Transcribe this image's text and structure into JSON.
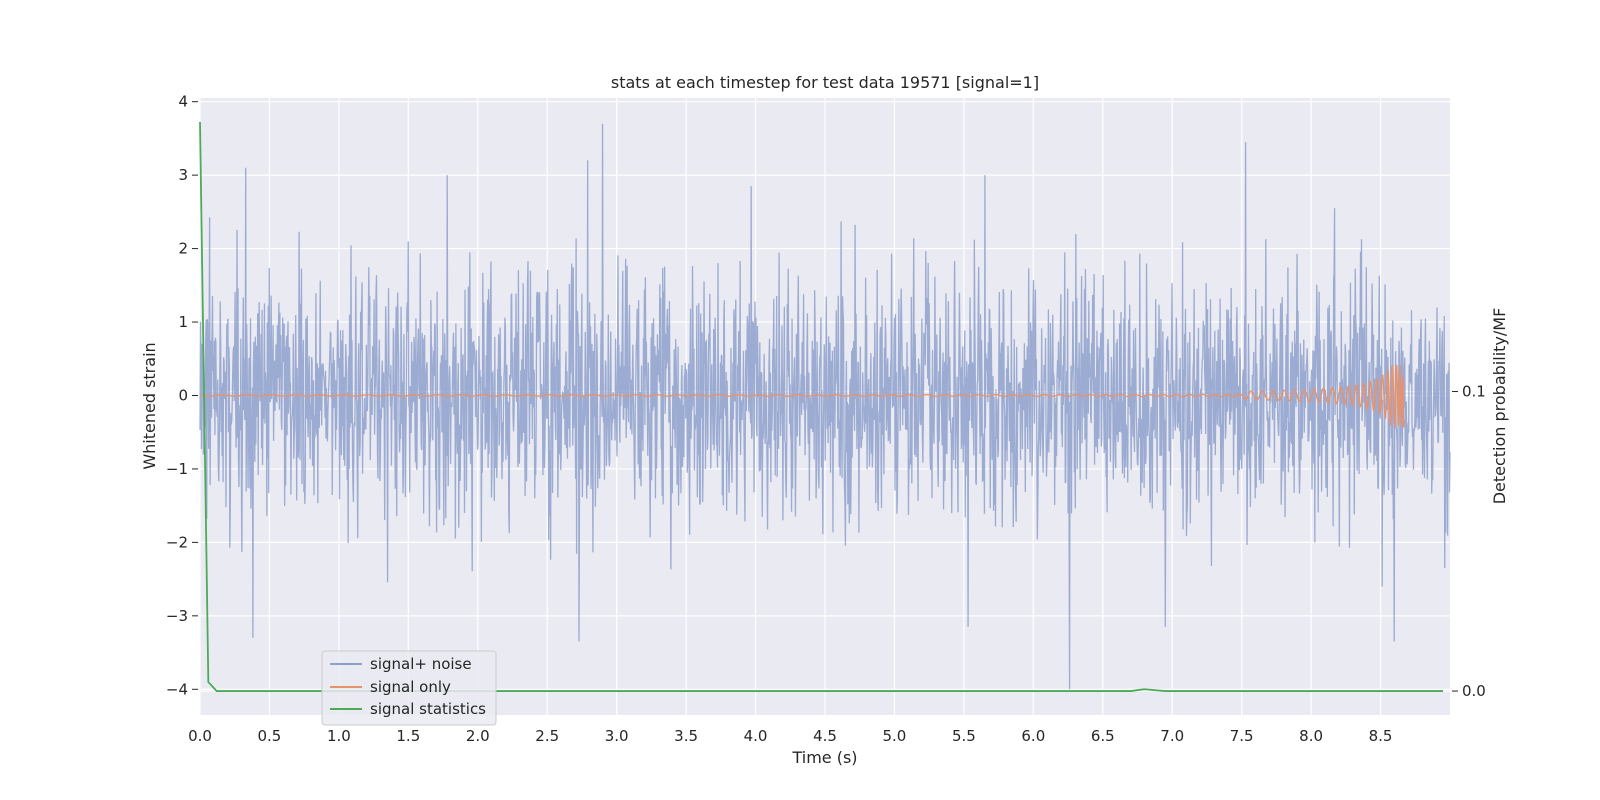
{
  "chart_data": {
    "type": "line",
    "title": "stats at each timestep for test data 19571 [signal=1]",
    "xlabel": "Time (s)",
    "ylabel": "Whitened strain",
    "ylabel_right": "Detection probability/MF",
    "xlim": [
      0.0,
      9.0
    ],
    "ylim": [
      -4.35,
      4.05
    ],
    "ylim_right": [
      -0.008,
      0.198
    ],
    "x_ticks": [
      "0.0",
      "0.5",
      "1.0",
      "1.5",
      "2.0",
      "2.5",
      "3.0",
      "3.5",
      "4.0",
      "4.5",
      "5.0",
      "5.5",
      "6.0",
      "6.5",
      "7.0",
      "7.5",
      "8.0",
      "8.5"
    ],
    "y_ticks": [
      "4",
      "3",
      "2",
      "1",
      "0",
      "−1",
      "−2",
      "−3",
      "−4"
    ],
    "y_right_ticks": [
      "0.1",
      "0.0"
    ],
    "grid": true,
    "legend_position": "lower-left",
    "series": [
      {
        "name": "signal+ noise",
        "color": "#8da0cb",
        "description": "whitened noisy strain, approx. zero-mean with std ~0.8",
        "x_range": [
          0.0,
          9.0
        ],
        "notable_peaks": [
          [
            0.33,
            3.1
          ],
          [
            1.78,
            3.0
          ],
          [
            2.79,
            3.2
          ],
          [
            2.9,
            3.7
          ],
          [
            3.97,
            2.85
          ],
          [
            5.65,
            3.0
          ],
          [
            7.53,
            3.45
          ],
          [
            8.17,
            2.55
          ],
          [
            0.38,
            -3.3
          ],
          [
            2.73,
            -3.35
          ],
          [
            5.53,
            -3.15
          ],
          [
            6.26,
            -4.0
          ],
          [
            6.95,
            -3.15
          ],
          [
            8.6,
            -3.35
          ]
        ]
      },
      {
        "name": "signal only",
        "color": "#e8926c",
        "description": "chirp waveform, near zero then rising amplitude until merger",
        "x_range": [
          0.0,
          8.67
        ],
        "peak_amplitude": 0.45,
        "merger_time": 8.67
      },
      {
        "name": "signal statistics",
        "color": "#4daa57",
        "x": [
          0.0,
          0.06,
          0.12,
          0.5,
          1.0,
          2.0,
          3.0,
          4.0,
          5.0,
          6.0,
          6.7,
          6.8,
          6.95,
          7.5,
          8.0,
          8.5,
          8.95
        ],
        "y": [
          0.19,
          0.003,
          0.0,
          0.0,
          0.0,
          0.0,
          0.0,
          0.0,
          0.0,
          0.0,
          0.0,
          0.0006,
          0.0,
          0.0,
          0.0,
          0.0,
          0.0
        ]
      }
    ]
  }
}
